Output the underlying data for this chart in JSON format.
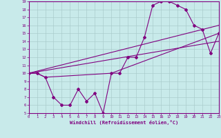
{
  "xlabel": "Windchill (Refroidissement éolien,°C)",
  "bg_color": "#c8eaea",
  "line_color": "#800080",
  "grid_color": "#aacccc",
  "xmin": 0,
  "xmax": 23,
  "ymin": 5,
  "ymax": 19,
  "series1_x": [
    0,
    1,
    2,
    3,
    4,
    5,
    6,
    7,
    8,
    9,
    10,
    11,
    12,
    13,
    14,
    15,
    16,
    17,
    18,
    19,
    20,
    21,
    22,
    23
  ],
  "series1_y": [
    10,
    10,
    9.5,
    7,
    6,
    6,
    8,
    6.5,
    7.5,
    5,
    10,
    10,
    12,
    12,
    14.5,
    18.5,
    19,
    19,
    18.5,
    18,
    16,
    15.5,
    12.5,
    15
  ],
  "series2_x": [
    0,
    1,
    2,
    10,
    23
  ],
  "series2_y": [
    10,
    10,
    9.5,
    10,
    15
  ],
  "series3_x": [
    0,
    23
  ],
  "series3_y": [
    10,
    16
  ],
  "series4_x": [
    0,
    23
  ],
  "series4_y": [
    10,
    14
  ]
}
